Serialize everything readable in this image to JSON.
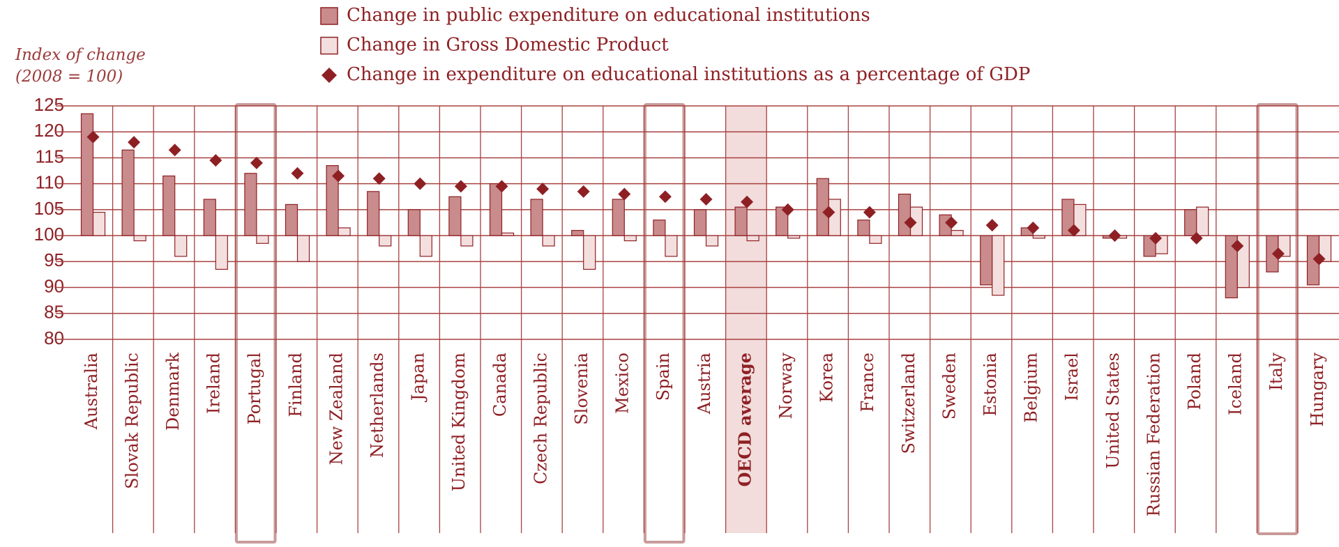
{
  "chart_data": {
    "type": "bar",
    "ylabel": "Index of change",
    "ylabel_sub": "(2008 = 100)",
    "categories": [
      "Australia",
      "Slovak Republic",
      "Denmark",
      "Ireland",
      "Portugal",
      "Finland",
      "New Zealand",
      "Netherlands",
      "Japan",
      "United Kingdom",
      "Canada",
      "Czech Republic",
      "Slovenia",
      "Mexico",
      "Spain",
      "Austria",
      "OECD average",
      "Norway",
      "Korea",
      "France",
      "Switzerland",
      "Sweden",
      "Estonia",
      "Belgium",
      "Israel",
      "United States",
      "Russian Federation",
      "Poland",
      "Iceland",
      "Italy",
      "Hungary"
    ],
    "series": [
      {
        "name": "Change in public expenditure on educational institutions",
        "color": "#c98b8c",
        "values": [
          123.5,
          116.5,
          111.5,
          107,
          112,
          106,
          113.5,
          108.5,
          105,
          107.5,
          110,
          107,
          101,
          107,
          103,
          105,
          105.5,
          105.5,
          111,
          103,
          108,
          104,
          90.5,
          101.5,
          107,
          99.5,
          96,
          105,
          88,
          93,
          90.5
        ]
      },
      {
        "name": "Change in Gross Domestic Product",
        "color": "#f4dfdf",
        "values": [
          104.5,
          99,
          96,
          93.5,
          98.5,
          95,
          101.5,
          98,
          96,
          98,
          100.5,
          98,
          93.5,
          99,
          96,
          98,
          99,
          99.5,
          107,
          98.5,
          105.5,
          101,
          88.5,
          99.5,
          106,
          99.5,
          96.5,
          105.5,
          90,
          96,
          95
        ]
      },
      {
        "name": "Change in expenditure on educational institutions as a percentage of GDP",
        "color": "#8e2024",
        "marker": "diamond",
        "values": [
          119,
          118,
          116.5,
          114.5,
          114,
          112,
          111.5,
          111,
          110,
          109.5,
          109.5,
          109,
          108.5,
          108,
          107.5,
          107,
          106.5,
          105,
          104.5,
          104.5,
          102.5,
          102.5,
          102,
          101.5,
          101,
          100,
          99.5,
          99.5,
          98,
          96.5,
          95.5
        ]
      }
    ],
    "ylim": [
      80,
      125
    ],
    "yticks": [
      80,
      85,
      90,
      95,
      100,
      105,
      110,
      115,
      120,
      125
    ],
    "grid": true
  }
}
